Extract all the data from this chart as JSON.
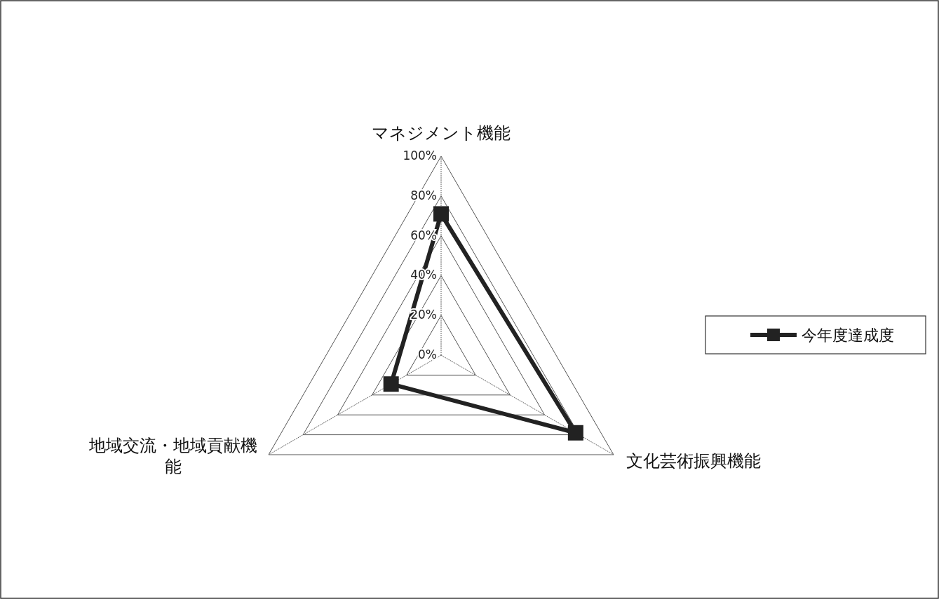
{
  "chart_data": {
    "type": "radar",
    "categories": [
      "マネジメント機能",
      "文化芸術振興機能",
      "地域交流・地域貢献機能"
    ],
    "series": [
      {
        "name": "今年度達成度",
        "color": "#222222",
        "values": [
          71,
          78,
          29
        ]
      }
    ],
    "ylim": [
      0,
      100
    ],
    "yticks": [
      {
        "value": 0,
        "label": "0%"
      },
      {
        "value": 20,
        "label": "20%"
      },
      {
        "value": 40,
        "label": "40%"
      },
      {
        "value": 60,
        "label": "60%"
      },
      {
        "value": 80,
        "label": "80%"
      },
      {
        "value": 100,
        "label": "100%"
      }
    ],
    "grid": true,
    "legend": "right",
    "marker": "square",
    "line_style": "solid"
  }
}
